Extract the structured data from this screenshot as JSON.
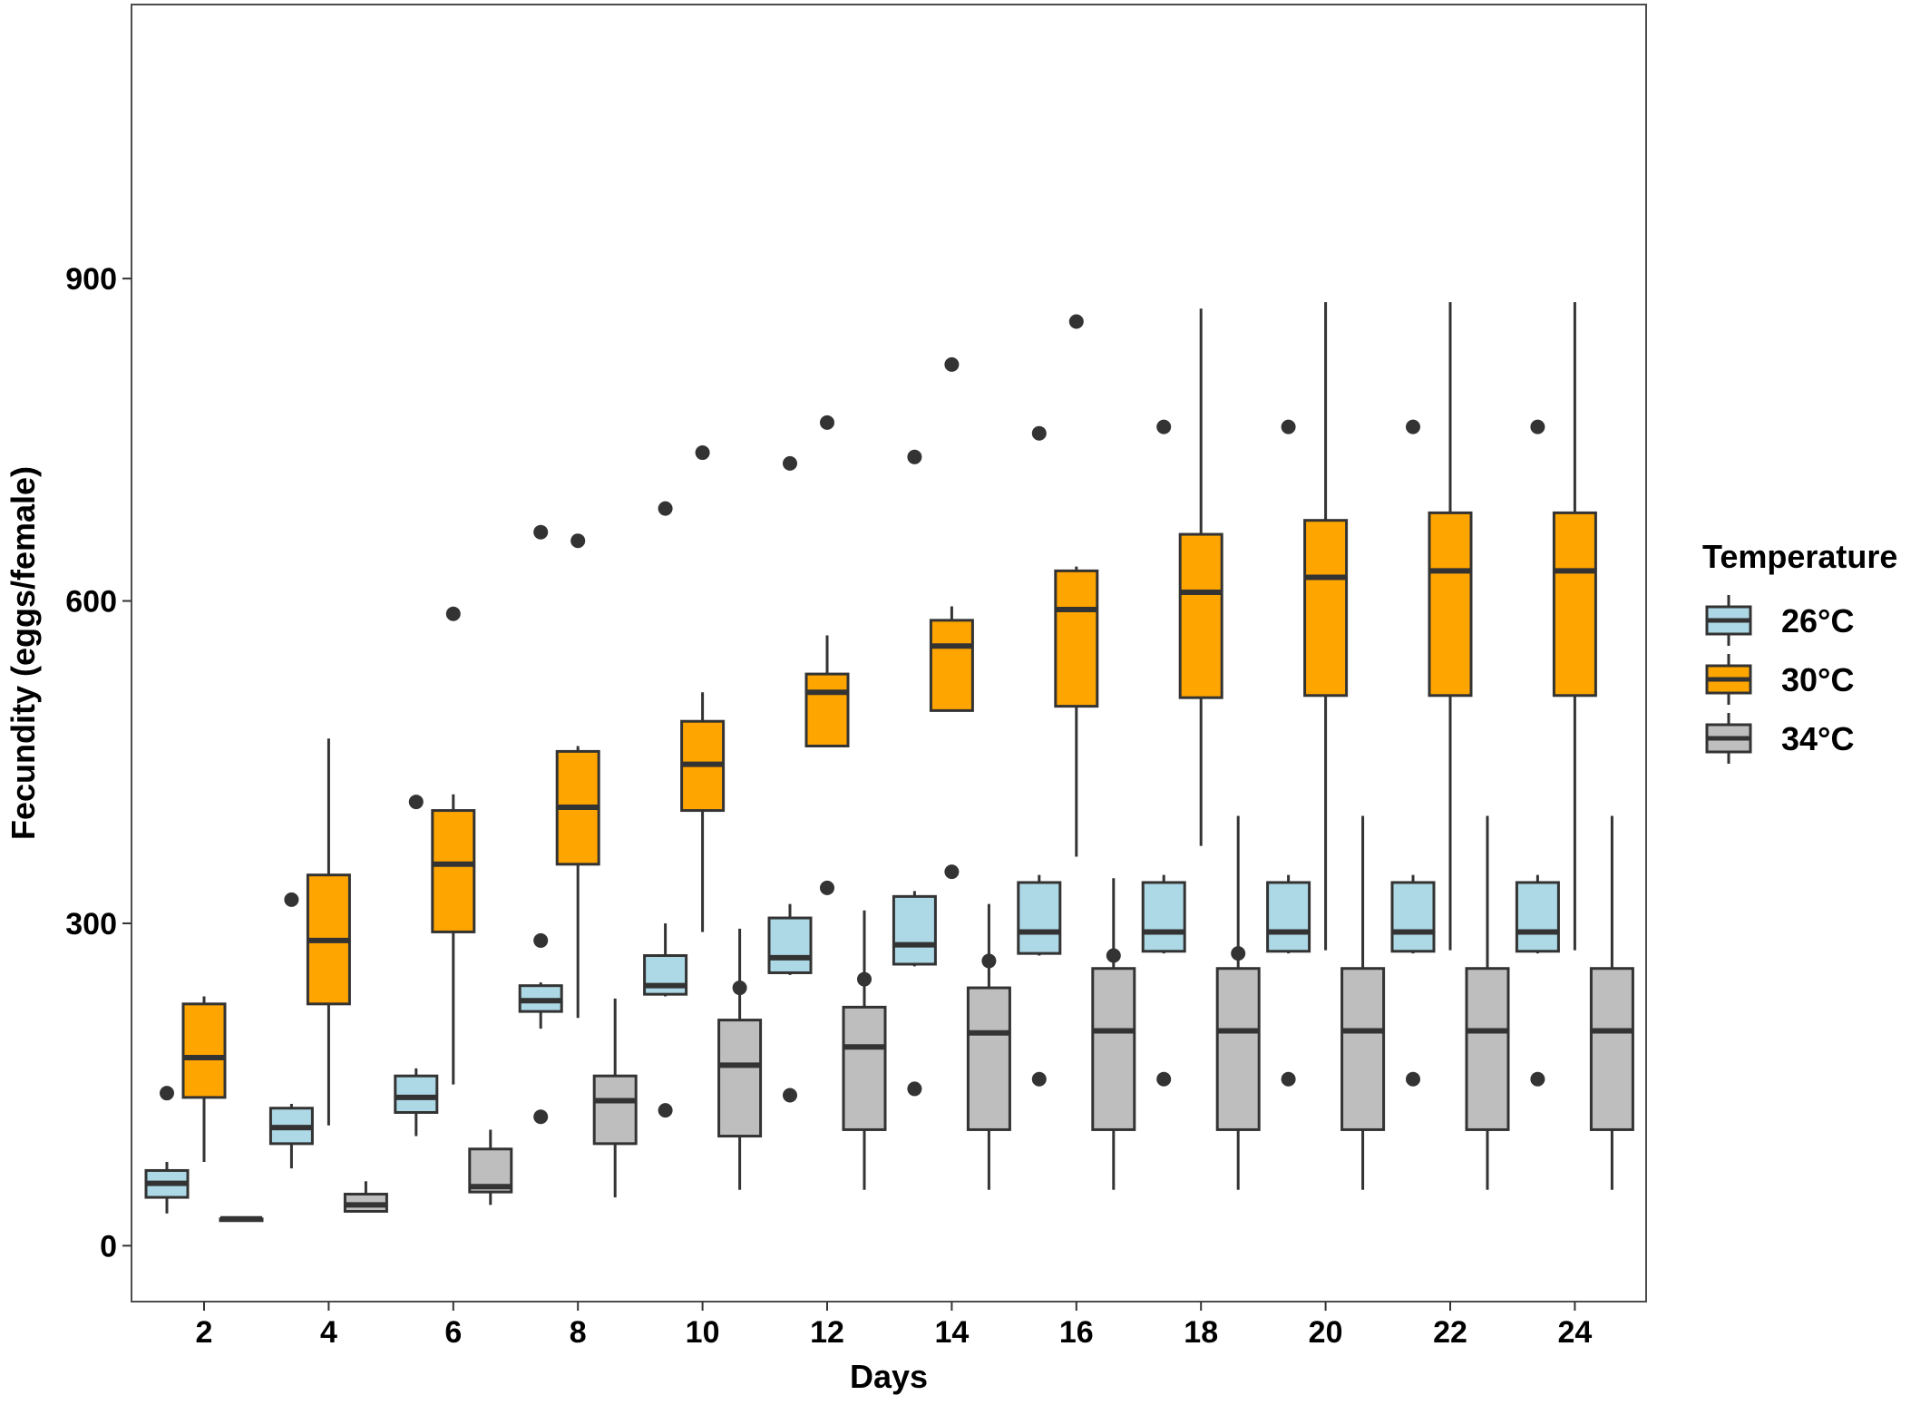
{
  "chart_data": {
    "type": "box",
    "xlabel": "Days",
    "ylabel": "Fecundity (eggs/female)",
    "ylim": [
      -52,
      1155
    ],
    "yticks": [
      0,
      300,
      600,
      900
    ],
    "categories": [
      "2",
      "4",
      "6",
      "8",
      "10",
      "12",
      "14",
      "16",
      "18",
      "20",
      "22",
      "24"
    ],
    "grid": false,
    "legend": {
      "title": "Temperature",
      "position": "right"
    },
    "series": [
      {
        "name": "26°C",
        "color": "#ADD8E6",
        "boxes": [
          {
            "min": 30,
            "q1": 45,
            "median": 58,
            "q3": 70,
            "max": 78,
            "outliers": [
              142
            ]
          },
          {
            "min": 72,
            "q1": 95,
            "median": 110,
            "q3": 128,
            "max": 132,
            "outliers": [
              322
            ]
          },
          {
            "min": 102,
            "q1": 124,
            "median": 138,
            "q3": 158,
            "max": 165,
            "outliers": [
              413
            ]
          },
          {
            "min": 202,
            "q1": 218,
            "median": 228,
            "q3": 242,
            "max": 245,
            "outliers": [
              120,
              284,
              664
            ]
          },
          {
            "min": 232,
            "q1": 234,
            "median": 242,
            "q3": 270,
            "max": 300,
            "outliers": [
              126,
              686
            ]
          },
          {
            "min": 252,
            "q1": 254,
            "median": 268,
            "q3": 305,
            "max": 318,
            "outliers": [
              140,
              728
            ]
          },
          {
            "min": 260,
            "q1": 262,
            "median": 280,
            "q3": 325,
            "max": 330,
            "outliers": [
              146,
              734
            ]
          },
          {
            "min": 270,
            "q1": 272,
            "median": 292,
            "q3": 338,
            "max": 345,
            "outliers": [
              155,
              756
            ]
          },
          {
            "min": 272,
            "q1": 274,
            "median": 292,
            "q3": 338,
            "max": 345,
            "outliers": [
              155,
              762
            ]
          },
          {
            "min": 272,
            "q1": 274,
            "median": 292,
            "q3": 338,
            "max": 345,
            "outliers": [
              155,
              762
            ]
          },
          {
            "min": 272,
            "q1": 274,
            "median": 292,
            "q3": 338,
            "max": 345,
            "outliers": [
              155,
              762
            ]
          },
          {
            "min": 272,
            "q1": 274,
            "median": 292,
            "q3": 338,
            "max": 345,
            "outliers": [
              155,
              762
            ]
          }
        ]
      },
      {
        "name": "30°C",
        "color": "#FFA500",
        "boxes": [
          {
            "min": 78,
            "q1": 138,
            "median": 175,
            "q3": 225,
            "max": 232,
            "outliers": []
          },
          {
            "min": 112,
            "q1": 225,
            "median": 284,
            "q3": 345,
            "max": 472,
            "outliers": []
          },
          {
            "min": 150,
            "q1": 292,
            "median": 355,
            "q3": 405,
            "max": 420,
            "outliers": [
              588
            ]
          },
          {
            "min": 212,
            "q1": 355,
            "median": 408,
            "q3": 460,
            "max": 465,
            "outliers": [
              656
            ]
          },
          {
            "min": 292,
            "q1": 405,
            "median": 448,
            "q3": 488,
            "max": 515,
            "outliers": [
              738
            ]
          },
          {
            "min": 465,
            "q1": 465,
            "median": 515,
            "q3": 532,
            "max": 568,
            "outliers": [
              333,
              766
            ]
          },
          {
            "min": 498,
            "q1": 498,
            "median": 558,
            "q3": 582,
            "max": 595,
            "outliers": [
              348,
              820
            ]
          },
          {
            "min": 362,
            "q1": 502,
            "median": 592,
            "q3": 628,
            "max": 632,
            "outliers": [
              860
            ]
          },
          {
            "min": 372,
            "q1": 510,
            "median": 608,
            "q3": 662,
            "max": 872,
            "outliers": []
          },
          {
            "min": 275,
            "q1": 512,
            "median": 622,
            "q3": 675,
            "max": 878,
            "outliers": []
          },
          {
            "min": 275,
            "q1": 512,
            "median": 628,
            "q3": 682,
            "max": 878,
            "outliers": []
          },
          {
            "min": 275,
            "q1": 512,
            "median": 628,
            "q3": 682,
            "max": 878,
            "outliers": []
          }
        ]
      },
      {
        "name": "34°C",
        "color": "#BEBEBE",
        "boxes": [
          {
            "min": 25,
            "q1": 25,
            "median": 25,
            "q3": 25,
            "max": 25,
            "outliers": []
          },
          {
            "min": 32,
            "q1": 32,
            "median": 38,
            "q3": 48,
            "max": 60,
            "outliers": []
          },
          {
            "min": 38,
            "q1": 50,
            "median": 55,
            "q3": 90,
            "max": 108,
            "outliers": []
          },
          {
            "min": 45,
            "q1": 95,
            "median": 135,
            "q3": 158,
            "max": 230,
            "outliers": []
          },
          {
            "min": 52,
            "q1": 102,
            "median": 168,
            "q3": 210,
            "max": 295,
            "outliers": [
              240
            ]
          },
          {
            "min": 52,
            "q1": 108,
            "median": 185,
            "q3": 222,
            "max": 312,
            "outliers": [
              248
            ]
          },
          {
            "min": 52,
            "q1": 108,
            "median": 198,
            "q3": 240,
            "max": 318,
            "outliers": [
              265
            ]
          },
          {
            "min": 52,
            "q1": 108,
            "median": 200,
            "q3": 258,
            "max": 342,
            "outliers": [
              270
            ]
          },
          {
            "min": 52,
            "q1": 108,
            "median": 200,
            "q3": 258,
            "max": 400,
            "outliers": [
              272
            ]
          },
          {
            "min": 52,
            "q1": 108,
            "median": 200,
            "q3": 258,
            "max": 400,
            "outliers": []
          },
          {
            "min": 52,
            "q1": 108,
            "median": 200,
            "q3": 258,
            "max": 400,
            "outliers": []
          },
          {
            "min": 52,
            "q1": 108,
            "median": 200,
            "q3": 258,
            "max": 400,
            "outliers": []
          }
        ]
      }
    ]
  }
}
